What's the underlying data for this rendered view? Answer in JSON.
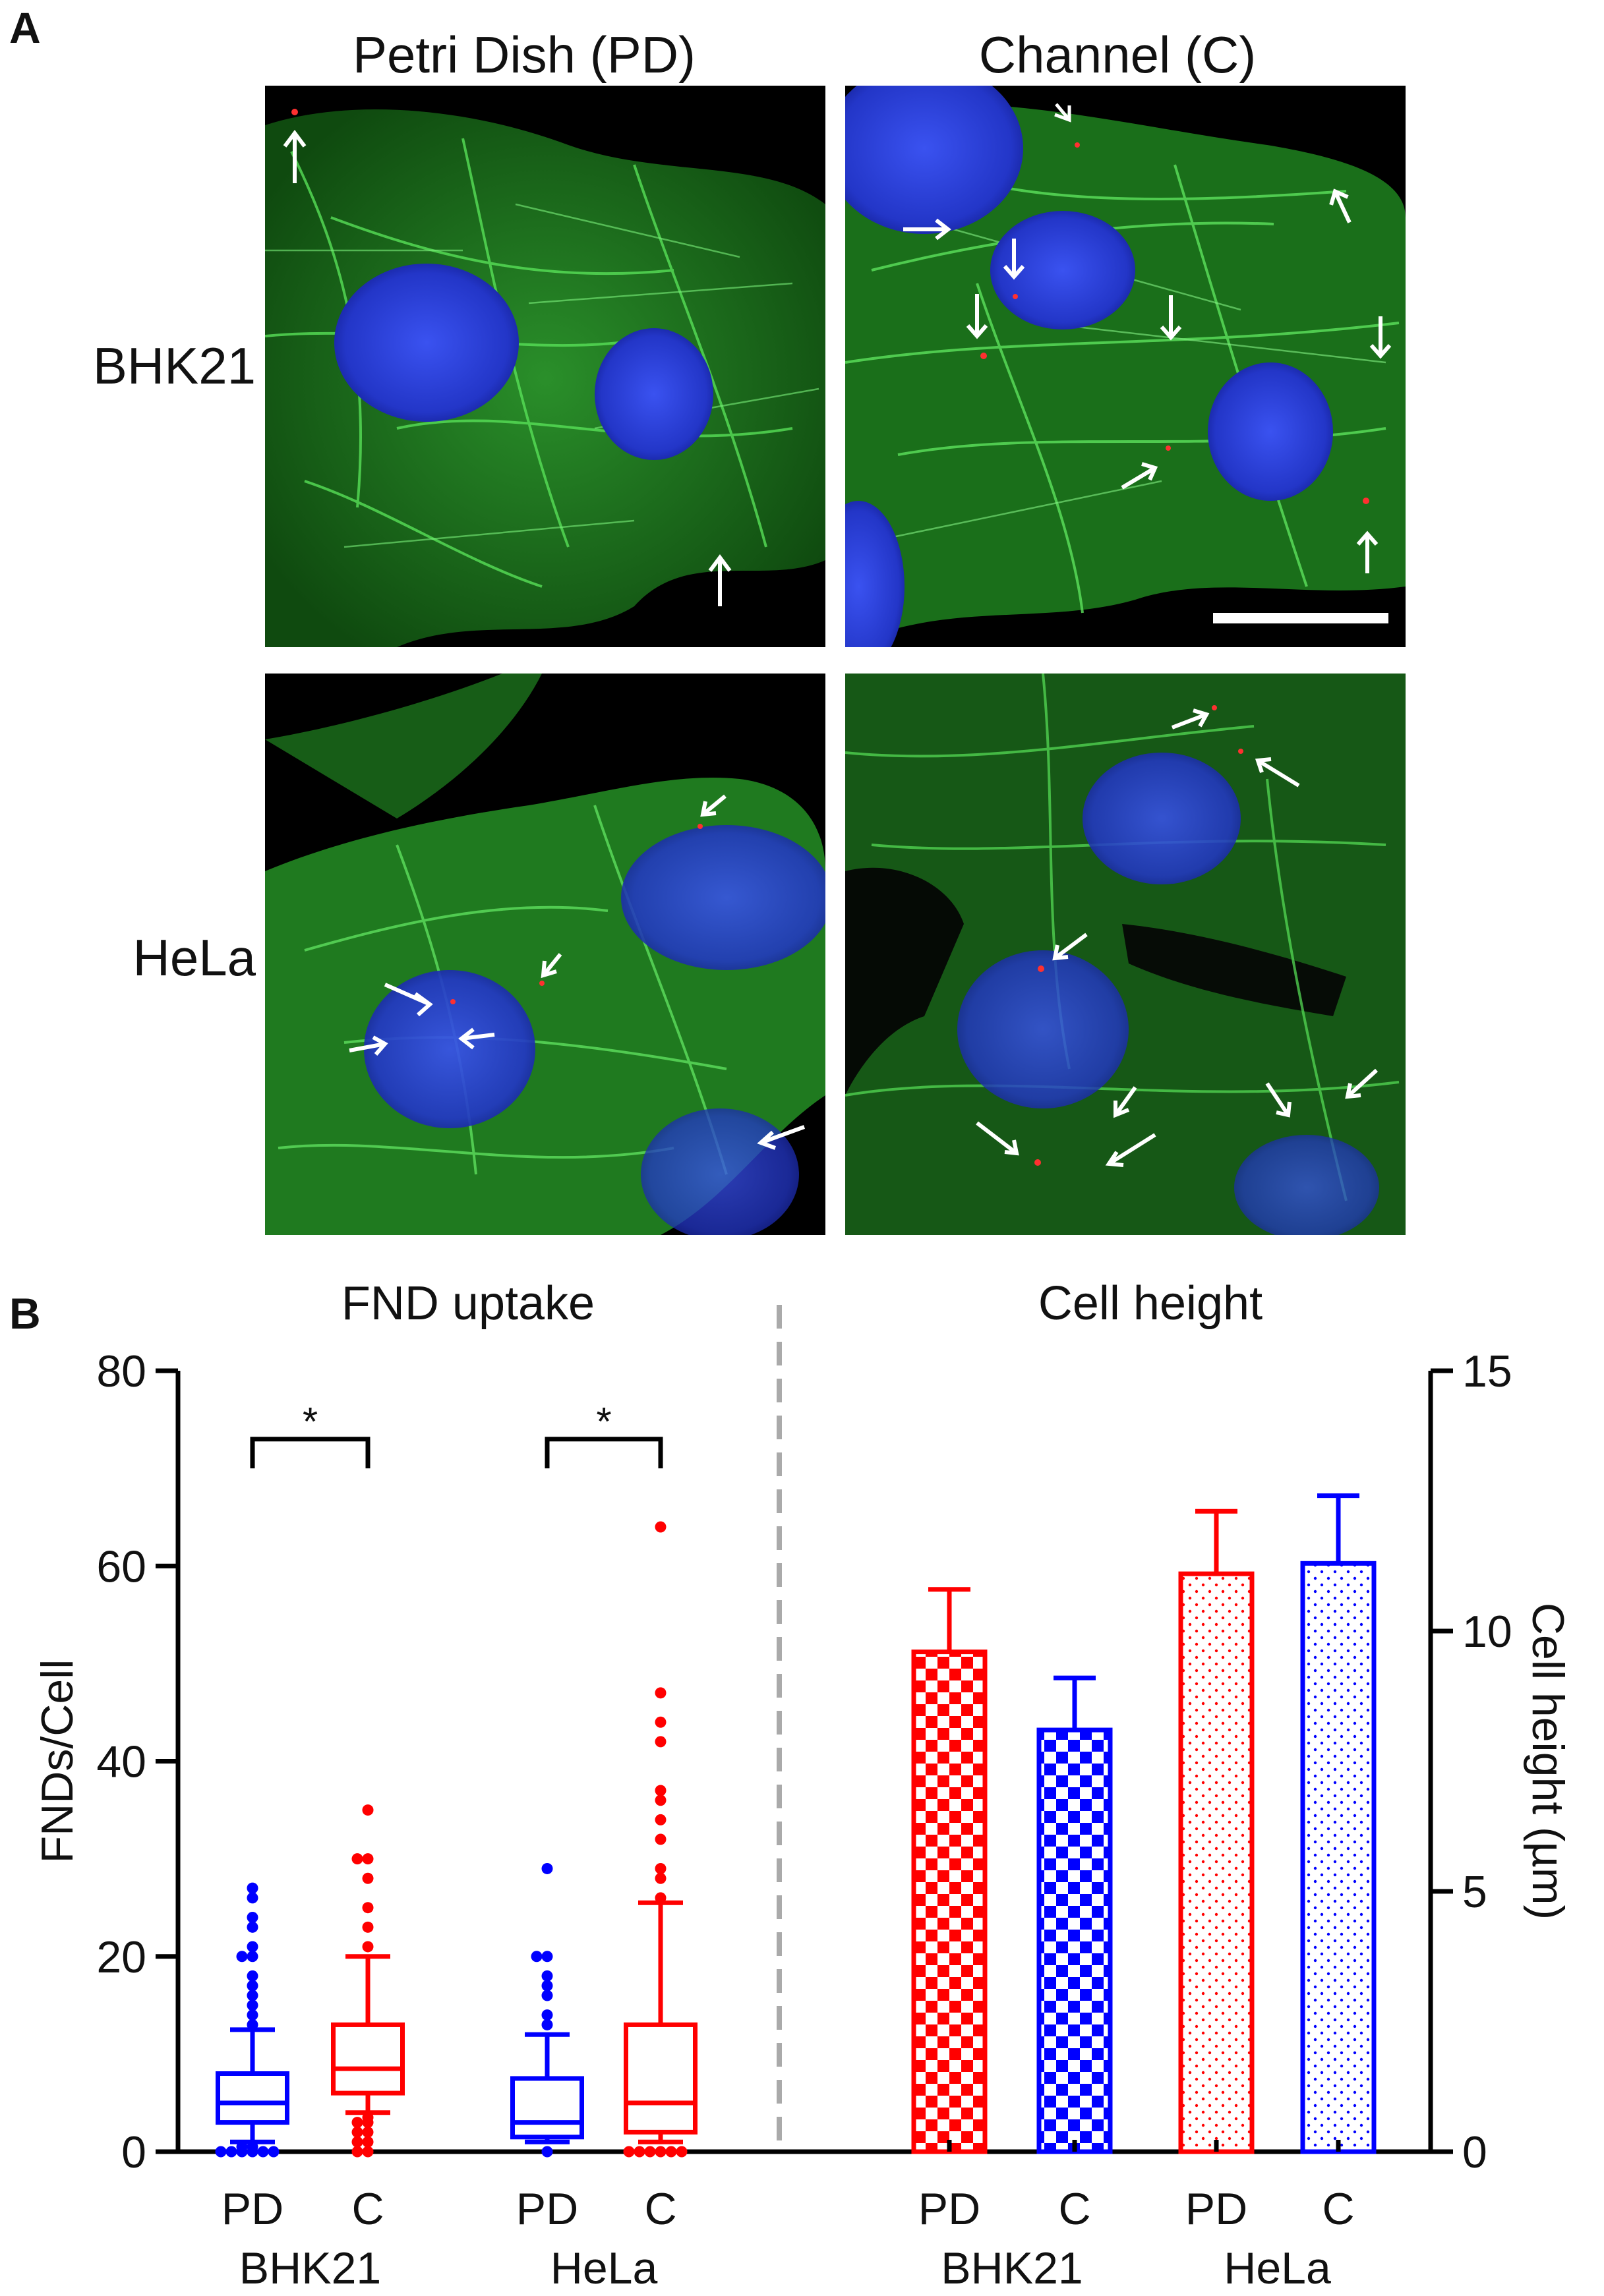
{
  "figure": {
    "panel_a_letter": "A",
    "panel_b_letter": "B",
    "column_titles": [
      "Petri Dish (PD)",
      "Channel (C)"
    ],
    "row_labels": [
      "BHK21",
      "HeLa"
    ],
    "micrographs": [
      {
        "name": "bhk21-petri-dish",
        "description_colors": {
          "actin": "#33c433",
          "nucleus": "#2a3dd8",
          "fnd": "#ff2a2a"
        }
      },
      {
        "name": "bhk21-channel"
      },
      {
        "name": "hela-petri-dish"
      },
      {
        "name": "hela-channel"
      }
    ]
  },
  "colors": {
    "red": "#ff0000",
    "blue": "#0000ff",
    "axis": "#000000",
    "divider": "#aaaaaa"
  },
  "chart_data": [
    {
      "type": "box",
      "title": "FND uptake",
      "ylabel": "FNDs/Cell",
      "ylim": [
        0,
        80
      ],
      "yticks": [
        0,
        20,
        40,
        60,
        80
      ],
      "categories": [
        "PD",
        "C",
        "PD",
        "C"
      ],
      "groups": [
        "BHK21",
        "HeLa"
      ],
      "significance": [
        {
          "between": [
            0,
            1
          ],
          "label": "*"
        },
        {
          "between": [
            2,
            3
          ],
          "label": "*"
        }
      ],
      "boxes": [
        {
          "group": "BHK21",
          "label": "PD",
          "color": "blue",
          "whisker_low": 1,
          "q1": 3,
          "median": 5,
          "q3": 8,
          "whisker_high": 12.5,
          "outliers": [
            0,
            0,
            0,
            0,
            0,
            0,
            0.5,
            0.5,
            13,
            14,
            15,
            16,
            17,
            18,
            20,
            20,
            21,
            23,
            24,
            26,
            27
          ]
        },
        {
          "group": "BHK21",
          "label": "C",
          "color": "red",
          "whisker_low": 4,
          "q1": 6,
          "median": 8.5,
          "q3": 13,
          "whisker_high": 20,
          "outliers": [
            0,
            0,
            1,
            1,
            2,
            2,
            3,
            3,
            3.5,
            21,
            23,
            25,
            28,
            30,
            30,
            35
          ]
        },
        {
          "group": "HeLa",
          "label": "PD",
          "color": "blue",
          "whisker_low": 1,
          "q1": 1.5,
          "median": 3,
          "q3": 7.5,
          "whisker_high": 12,
          "outliers": [
            0,
            13,
            14,
            16,
            17,
            18,
            20,
            20,
            29
          ]
        },
        {
          "group": "HeLa",
          "label": "C",
          "color": "red",
          "whisker_low": 1,
          "q1": 2,
          "median": 5,
          "q3": 13,
          "whisker_high": 25.5,
          "outliers": [
            0,
            0,
            0,
            0,
            0,
            0,
            26,
            28,
            29,
            32,
            34,
            36,
            37,
            42,
            44,
            47,
            64
          ]
        }
      ]
    },
    {
      "type": "bar",
      "title": "Cell height",
      "ylabel": "Cell height (µm)",
      "ylim": [
        0,
        15
      ],
      "yticks": [
        0,
        5,
        10,
        15
      ],
      "categories": [
        "PD",
        "C",
        "PD",
        "C"
      ],
      "groups": [
        "BHK21",
        "HeLa"
      ],
      "bars": [
        {
          "group": "BHK21",
          "label": "PD",
          "value": 9.6,
          "error": 1.2,
          "color": "red",
          "pattern": "checker"
        },
        {
          "group": "BHK21",
          "label": "C",
          "value": 8.1,
          "error": 1.0,
          "color": "blue",
          "pattern": "checker"
        },
        {
          "group": "HeLa",
          "label": "PD",
          "value": 11.1,
          "error": 1.2,
          "color": "red",
          "pattern": "dots"
        },
        {
          "group": "HeLa",
          "label": "C",
          "value": 11.3,
          "error": 1.3,
          "color": "blue",
          "pattern": "dots"
        }
      ]
    }
  ]
}
